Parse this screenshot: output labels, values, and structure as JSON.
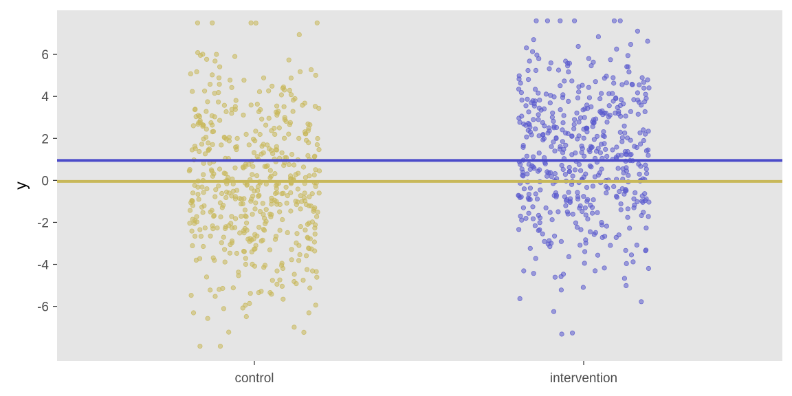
{
  "chart_data": {
    "type": "scatter",
    "title": "",
    "xlabel": "",
    "ylabel": "y",
    "categories": [
      "control",
      "intervention"
    ],
    "ylim": [
      -8.6,
      8.1
    ],
    "yticks": [
      -6,
      -4,
      -2,
      0,
      2,
      4,
      6
    ],
    "grid": false,
    "background": "#e5e5e5",
    "series": [
      {
        "category": "control",
        "color": "#c8b85a",
        "n_points": 500,
        "mean": -0.05,
        "range": [
          -7.9,
          7.5
        ]
      },
      {
        "category": "intervention",
        "color": "#5a5acd",
        "n_points": 500,
        "mean": 0.95,
        "range": [
          -7.5,
          7.6
        ]
      }
    ],
    "hlines": [
      {
        "category": "intervention",
        "value": 0.95,
        "color": "#4b4bc9"
      },
      {
        "category": "control",
        "value": -0.05,
        "color": "#c8b85a"
      }
    ]
  }
}
